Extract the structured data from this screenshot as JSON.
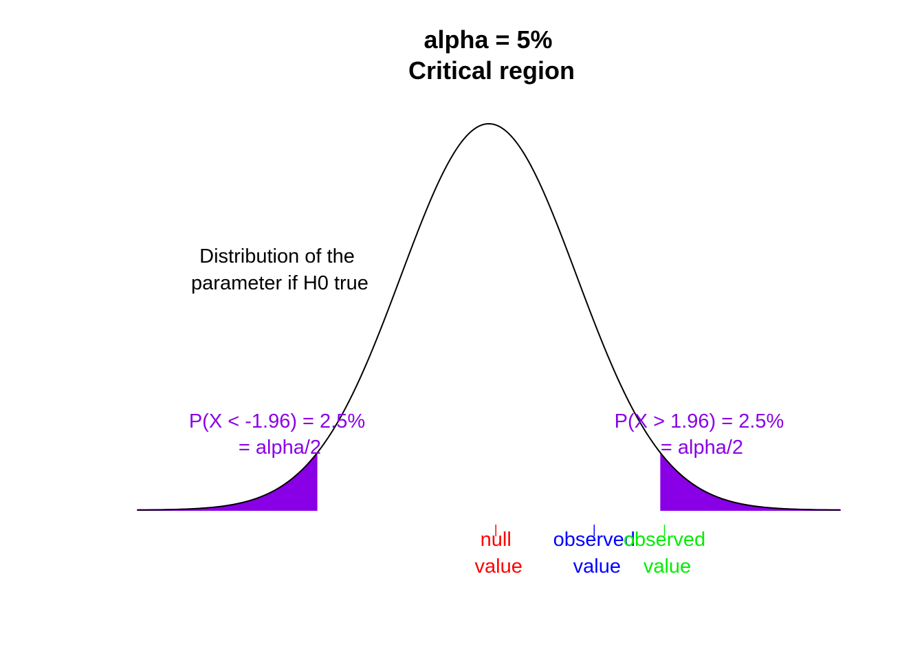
{
  "chart_data": {
    "type": "area",
    "title_line1": "alpha = 5%",
    "title_line2": "Critical region",
    "xlim": [
      -4,
      4
    ],
    "curve": {
      "distribution": "normal",
      "mean": 0,
      "sd": 1,
      "color": "#000000"
    },
    "critical_values": [
      -1.96,
      1.96
    ],
    "shade_color": "#8a00e6",
    "annotations": {
      "distribution_line1": "Distribution of the",
      "distribution_line2": "parameter if H0 true",
      "left_tail_line1": "P(X < -1.96) = 2.5%",
      "left_tail_line2": "= alpha/2",
      "right_tail_line1": "P(X > 1.96) = 2.5%",
      "right_tail_line2": "= alpha/2"
    },
    "markers": [
      {
        "name": "null",
        "x": 0.08,
        "line1": "null",
        "line2": "value",
        "color": "#ff0000"
      },
      {
        "name": "observed-blue",
        "x": 1.2,
        "line1": "observed",
        "line2": "value",
        "color": "#0000ff"
      },
      {
        "name": "observed-green",
        "x": 2.0,
        "line1": "observed",
        "line2": "value",
        "color": "#00ee00"
      }
    ]
  }
}
